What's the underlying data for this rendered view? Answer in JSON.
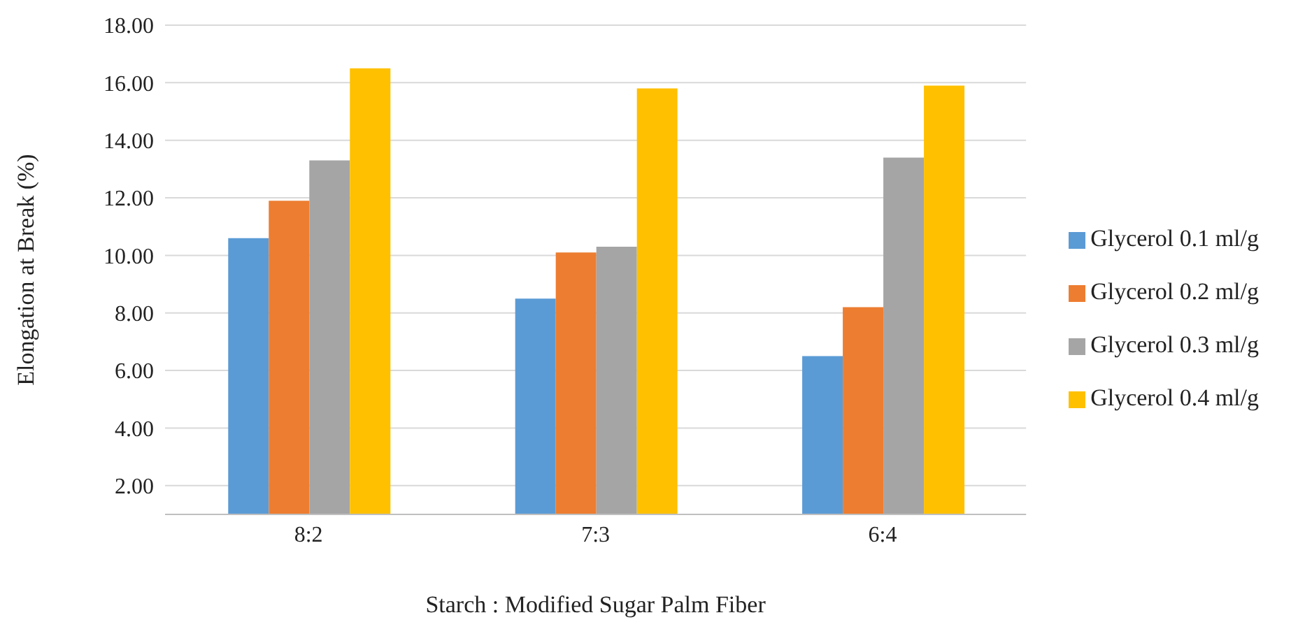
{
  "chart_data": {
    "type": "bar",
    "xlabel": "Starch : Modified Sugar Palm Fiber",
    "ylabel": "Elongation at Break (%)",
    "categories": [
      "8:2",
      "7:3",
      "6:4"
    ],
    "series": [
      {
        "name": "Glycerol 0.1 ml/g",
        "color": "#5b9bd5",
        "values": [
          10.6,
          8.5,
          6.5
        ]
      },
      {
        "name": "Glycerol 0.2 ml/g",
        "color": "#ed7d31",
        "values": [
          11.9,
          10.1,
          8.2
        ]
      },
      {
        "name": "Glycerol 0.3 ml/g",
        "color": "#a5a5a5",
        "values": [
          13.3,
          10.3,
          13.4
        ]
      },
      {
        "name": "Glycerol 0.4 ml/g",
        "color": "#ffc000",
        "values": [
          16.5,
          15.8,
          15.9
        ]
      }
    ],
    "ylim": [
      1,
      18
    ],
    "yticks": [
      {
        "value": 2,
        "label": "2.00"
      },
      {
        "value": 4,
        "label": "4.00"
      },
      {
        "value": 6,
        "label": "6.00"
      },
      {
        "value": 8,
        "label": "8.00"
      },
      {
        "value": 10,
        "label": "10.00"
      },
      {
        "value": 12,
        "label": "12.00"
      },
      {
        "value": 14,
        "label": "14.00"
      },
      {
        "value": 16,
        "label": "16.00"
      },
      {
        "value": 18,
        "label": "18.00"
      }
    ],
    "grid": "y",
    "legend": "right"
  }
}
